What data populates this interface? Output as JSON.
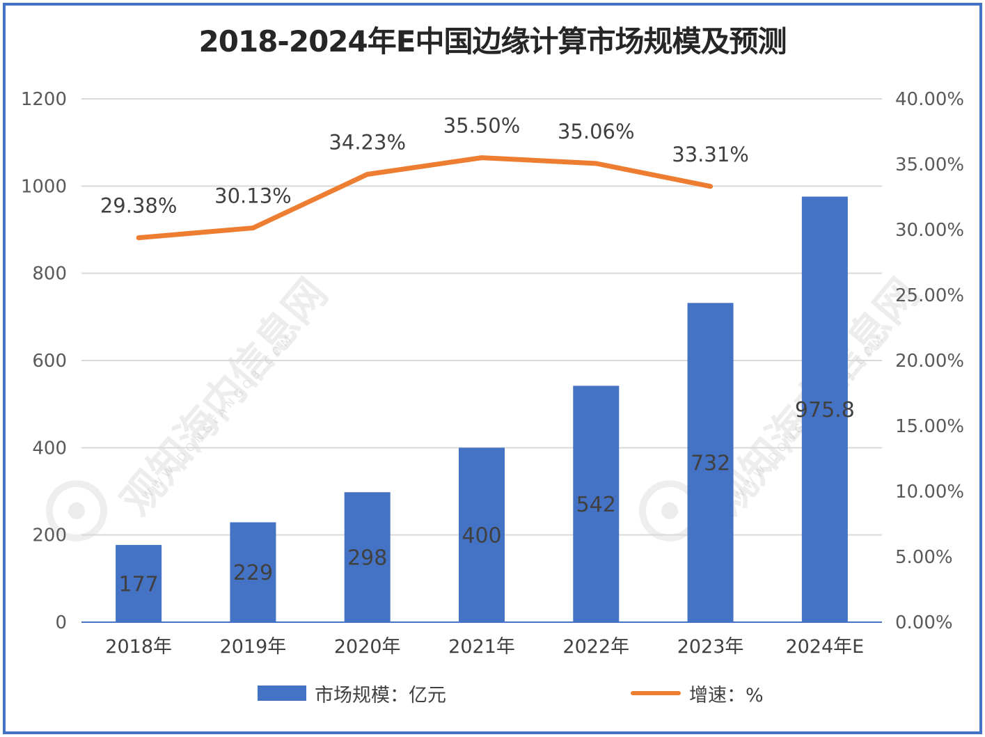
{
  "chart_data": {
    "type": "bar+line",
    "title": "2018-2024年E中国边缘计算市场规模及预测",
    "categories": [
      "2018年",
      "2019年",
      "2020年",
      "2021年",
      "2022年",
      "2023年",
      "2024年E"
    ],
    "series": [
      {
        "name": "市场规模：亿元",
        "type": "bar",
        "axis": "left",
        "color": "#4472c4",
        "values": [
          177,
          229,
          298,
          400,
          542,
          732,
          975.8
        ],
        "labels": [
          "177",
          "229",
          "298",
          "400",
          "542",
          "732",
          "975.8"
        ]
      },
      {
        "name": "增速：%",
        "type": "line",
        "axis": "right",
        "color": "#ed7d31",
        "values": [
          29.38,
          30.13,
          34.23,
          35.5,
          35.06,
          33.31,
          null
        ],
        "labels": [
          "29.38%",
          "30.13%",
          "34.23%",
          "35.50%",
          "35.06%",
          "33.31%",
          ""
        ]
      }
    ],
    "y_left": {
      "ylim": [
        0,
        1200
      ],
      "ticks": [
        "0",
        "200",
        "400",
        "600",
        "800",
        "1000",
        "1200"
      ]
    },
    "y_right": {
      "ylim": [
        0,
        40
      ],
      "ticks": [
        "0.00%",
        "5.00%",
        "10.00%",
        "15.00%",
        "20.00%",
        "25.00%",
        "30.00%",
        "35.00%",
        "40.00%"
      ]
    },
    "grid": true,
    "legend_position": "bottom"
  },
  "watermark": {
    "text": "观知海内信息网",
    "url": "WWW.DONGFANGQB.COM"
  },
  "colors": {
    "frame": "#4472c4",
    "bar": "#4472c4",
    "line": "#ed7d31",
    "grid": "#d9d9d9",
    "text": "#404040"
  }
}
